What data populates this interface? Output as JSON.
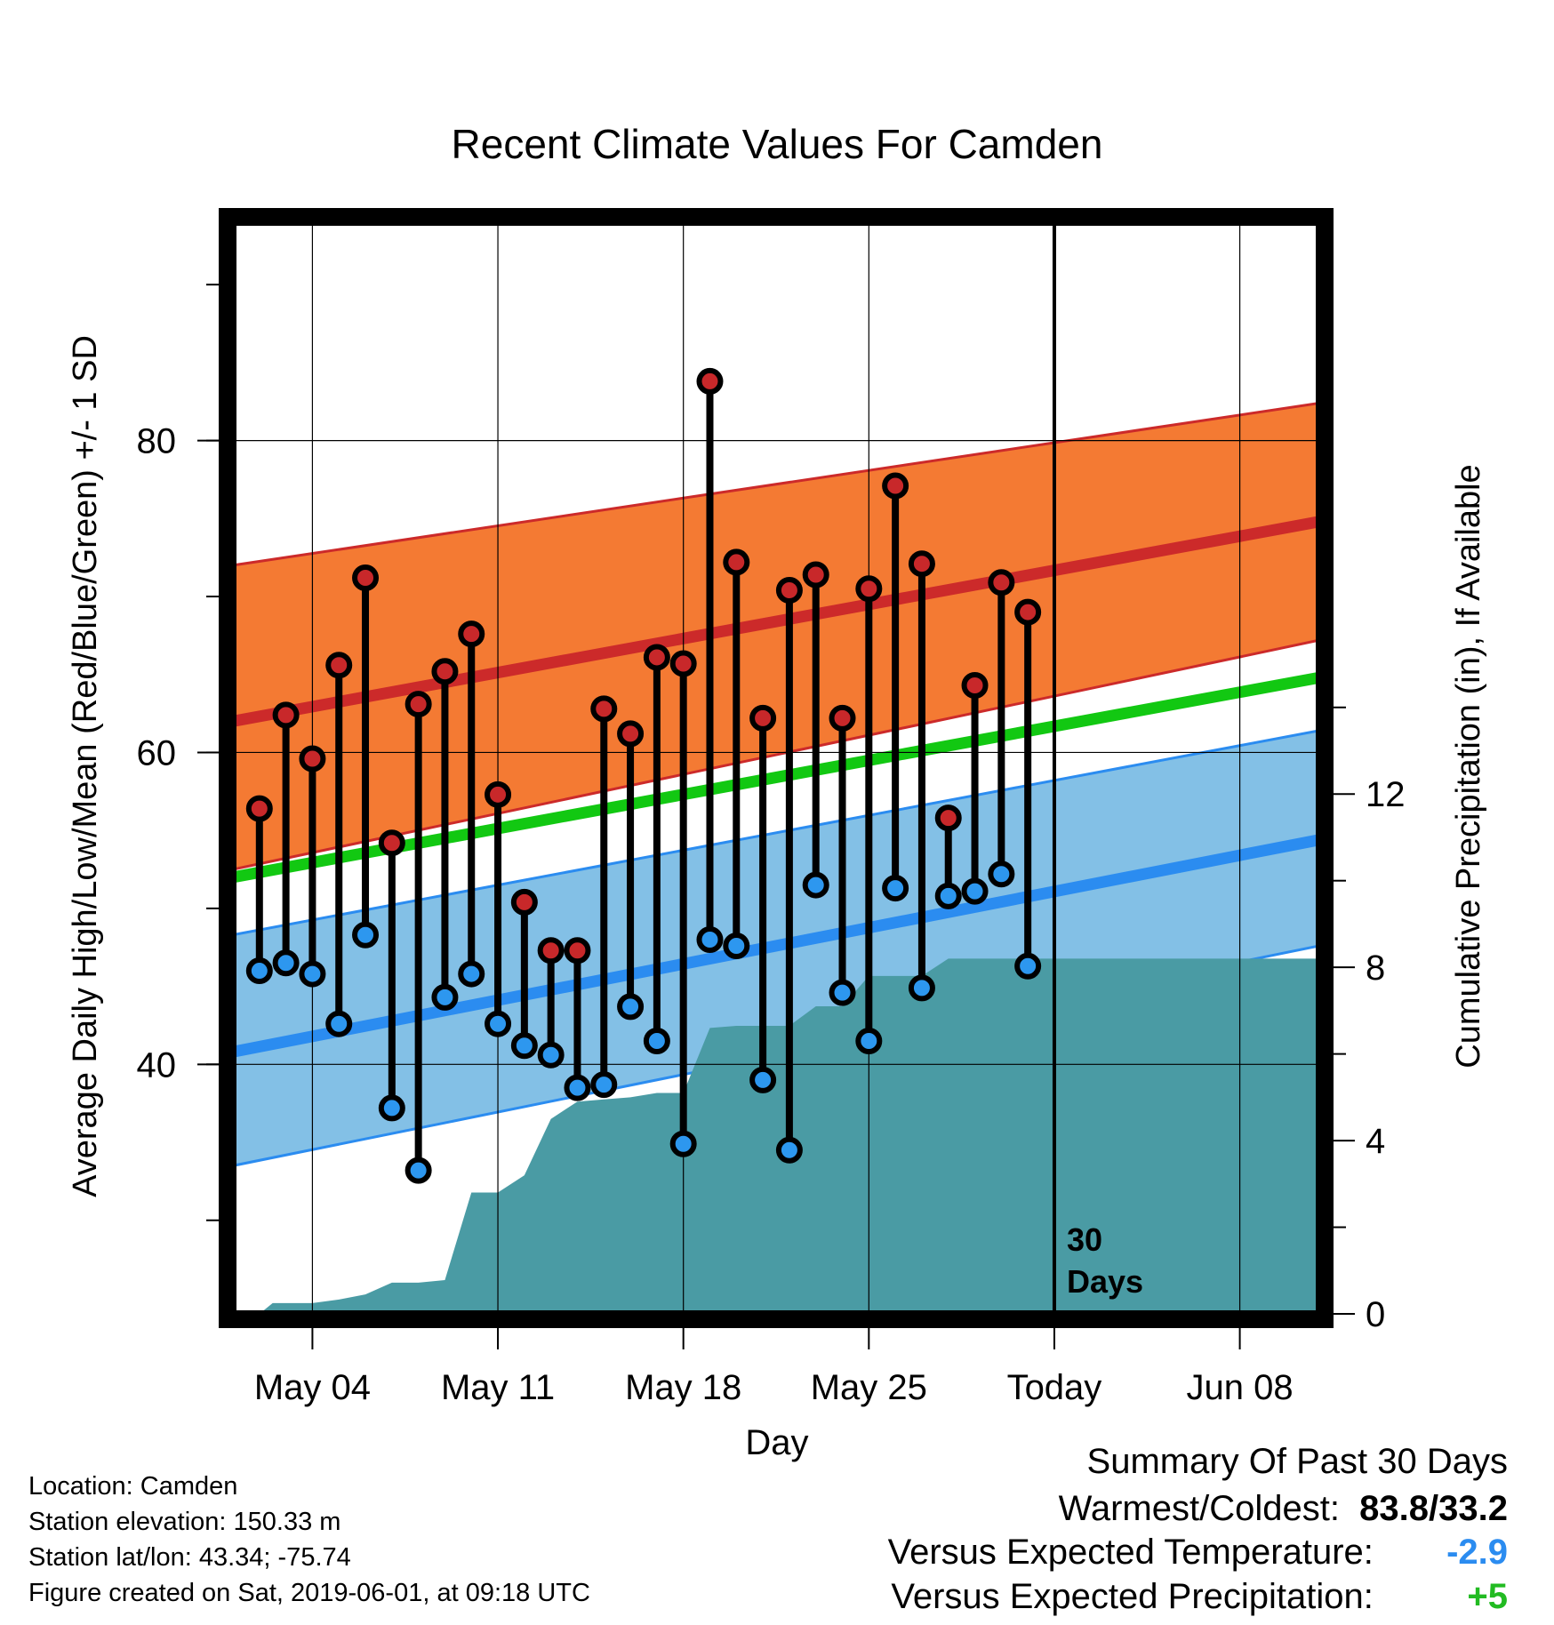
{
  "chart_data": {
    "type": "line",
    "title": "Recent Climate Values For Camden",
    "xlabel": "Day",
    "ylabel": "Average Daily High/Low/Mean (Red/Blue/Green) +/- 1 SD",
    "y2label": "Cumulative Precipitation (in), If Available",
    "ylim": [
      24,
      94
    ],
    "y2lim": [
      0,
      25.2
    ],
    "yticks": [
      40,
      60,
      80
    ],
    "y2ticks": [
      0,
      4,
      8,
      12
    ],
    "xticks": [
      {
        "day": 3,
        "label": "May 04"
      },
      {
        "day": 10,
        "label": "May 11"
      },
      {
        "day": 17,
        "label": "May 18"
      },
      {
        "day": 24,
        "label": "May 25"
      },
      {
        "day": 31,
        "label": "Today"
      },
      {
        "day": 38,
        "label": "Jun 08"
      }
    ],
    "xlim": [
      0,
      41
    ],
    "today_day": 31,
    "today_label": "30 Days",
    "grid": true,
    "normal_bands": {
      "high_mean": [
        62.0,
        74.8
      ],
      "high_upper": [
        72.0,
        82.4
      ],
      "high_lower": [
        52.5,
        67.2
      ],
      "low_mean": [
        40.8,
        54.4
      ],
      "low_upper": [
        48.3,
        61.4
      ],
      "low_lower": [
        33.5,
        47.6
      ],
      "overall_mean": [
        52.0,
        64.8
      ],
      "x_range": [
        0,
        41
      ]
    },
    "series": [
      {
        "name": "High",
        "x": [
          1,
          2,
          3,
          4,
          5,
          6,
          7,
          8,
          9,
          10,
          11,
          12,
          13,
          14,
          15,
          16,
          17,
          18,
          19,
          20,
          21,
          22,
          23,
          24,
          25,
          26,
          27,
          28,
          29,
          30
        ],
        "values": [
          56.4,
          62.4,
          59.6,
          65.6,
          71.2,
          54.2,
          63.1,
          65.2,
          67.6,
          57.3,
          50.4,
          47.3,
          47.3,
          62.8,
          61.2,
          66.1,
          65.7,
          83.8,
          72.2,
          62.2,
          70.4,
          71.4,
          62.2,
          70.5,
          77.1,
          72.1,
          55.8,
          64.3,
          70.9,
          69.0
        ]
      },
      {
        "name": "Low",
        "x": [
          1,
          2,
          3,
          4,
          5,
          6,
          7,
          8,
          9,
          10,
          11,
          12,
          13,
          14,
          15,
          16,
          17,
          18,
          19,
          20,
          21,
          22,
          23,
          24,
          25,
          26,
          27,
          28,
          29,
          30
        ],
        "values": [
          46.0,
          46.5,
          45.8,
          42.6,
          48.3,
          37.2,
          33.2,
          44.3,
          45.8,
          42.6,
          41.2,
          40.6,
          38.5,
          38.7,
          43.7,
          41.5,
          34.9,
          48.0,
          47.6,
          39.0,
          34.5,
          51.5,
          44.6,
          41.5,
          51.3,
          44.9,
          50.8,
          51.1,
          52.2,
          46.3
        ]
      },
      {
        "name": "Cumulative Precipitation",
        "axis": "right",
        "x": [
          1,
          1.5,
          3,
          4,
          5,
          6,
          7,
          8,
          9,
          10,
          11,
          12,
          13,
          14,
          15,
          16,
          17,
          18,
          19,
          20,
          21,
          22,
          23,
          24,
          25,
          26,
          27,
          28,
          29,
          30,
          31,
          38,
          41
        ],
        "values": [
          0.0,
          0.25,
          0.25,
          0.33,
          0.45,
          0.72,
          0.72,
          0.78,
          2.8,
          2.8,
          3.2,
          4.5,
          4.9,
          4.95,
          5.0,
          5.1,
          5.1,
          6.6,
          6.65,
          6.65,
          6.65,
          7.1,
          7.1,
          7.8,
          7.8,
          7.8,
          8.2,
          8.2,
          8.2,
          8.2,
          8.2,
          8.2,
          8.2
        ]
      }
    ]
  },
  "info": {
    "location": "Location: Camden",
    "elevation": "Station elevation: 150.33 m",
    "latlon": "Station lat/lon: 43.34; -75.74",
    "created": "Figure created on Sat, 2019-06-01, at 09:18 UTC"
  },
  "summary": {
    "heading": "Summary Of Past 30 Days",
    "warmest_label": "Warmest/Coldest:",
    "warmest_value": "83.8/33.2",
    "temp_label": "Versus Expected Temperature:",
    "temp_value": "-2.9",
    "precip_label": "Versus Expected Precipitation:",
    "precip_value": "+5"
  },
  "colors": {
    "high_band": "#f47a33",
    "high_mean": "#cc2a2a",
    "low_band": "#83c0e6",
    "low_mean": "#2b8cf0",
    "overall_mean": "#12c812",
    "precip": "#4a9ba4",
    "high_marker": "#c8282a",
    "low_marker": "#2d97ef",
    "temp_delta": "#2b8cf0",
    "precip_delta": "#22bb22"
  }
}
